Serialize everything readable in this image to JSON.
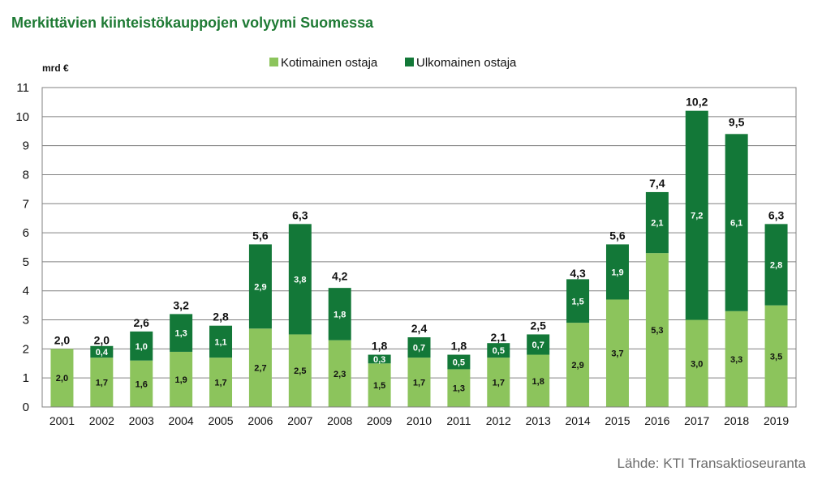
{
  "title": "Merkittävien kiinteistökauppojen volyymi Suomessa",
  "source": "Lähde: KTI Transaktioseuranta",
  "chart_data": {
    "type": "bar",
    "stacked": true,
    "ylabel": "mrd €",
    "ylim": [
      0,
      11
    ],
    "yticks": [
      0,
      1,
      2,
      3,
      4,
      5,
      6,
      7,
      8,
      9,
      10,
      11
    ],
    "grid": true,
    "legend_position": "top",
    "categories": [
      "2001",
      "2002",
      "2003",
      "2004",
      "2005",
      "2006",
      "2007",
      "2008",
      "2009",
      "2010",
      "2011",
      "2012",
      "2013",
      "2014",
      "2015",
      "2016",
      "2017",
      "2018",
      "2019"
    ],
    "series": [
      {
        "name": "Kotimainen ostaja",
        "color": "#8cc45c",
        "values": [
          2.0,
          1.7,
          1.6,
          1.9,
          1.7,
          2.7,
          2.5,
          2.3,
          1.5,
          1.7,
          1.3,
          1.7,
          1.8,
          2.9,
          3.7,
          5.3,
          3.0,
          3.3,
          3.5
        ],
        "labels": [
          "2,0",
          "1,7",
          "1,6",
          "1,9",
          "1,7",
          "2,7",
          "2,5",
          "2,3",
          "1,5",
          "1,7",
          "1,3",
          "1,7",
          "1,8",
          "2,9",
          "3,7",
          "5,3",
          "3,0",
          "3,3",
          "3,5"
        ]
      },
      {
        "name": "Ulkomainen ostaja",
        "color": "#137838",
        "values": [
          0,
          0.4,
          1.0,
          1.3,
          1.1,
          2.9,
          3.8,
          1.8,
          0.3,
          0.7,
          0.5,
          0.5,
          0.7,
          1.5,
          1.9,
          2.1,
          7.2,
          6.1,
          2.8
        ],
        "labels": [
          "",
          "0,4",
          "1,0",
          "1,3",
          "1,1",
          "2,9",
          "3,8",
          "1,8",
          "0,3",
          "0,7",
          "0,5",
          "0,5",
          "0,7",
          "1,5",
          "1,9",
          "2,1",
          "7,2",
          "6,1",
          "2,8"
        ]
      }
    ],
    "totals": [
      2.0,
      2.0,
      2.6,
      3.2,
      2.8,
      5.6,
      6.3,
      4.2,
      1.8,
      2.4,
      1.8,
      2.1,
      2.5,
      4.3,
      5.6,
      7.4,
      10.2,
      9.5,
      6.3
    ],
    "total_labels": [
      "2,0",
      "2,0",
      "2,6",
      "3,2",
      "2,8",
      "5,6",
      "6,3",
      "4,2",
      "1,8",
      "2,4",
      "1,8",
      "2,1",
      "2,5",
      "4,3",
      "5,6",
      "7,4",
      "10,2",
      "9,5",
      "6,3"
    ]
  }
}
